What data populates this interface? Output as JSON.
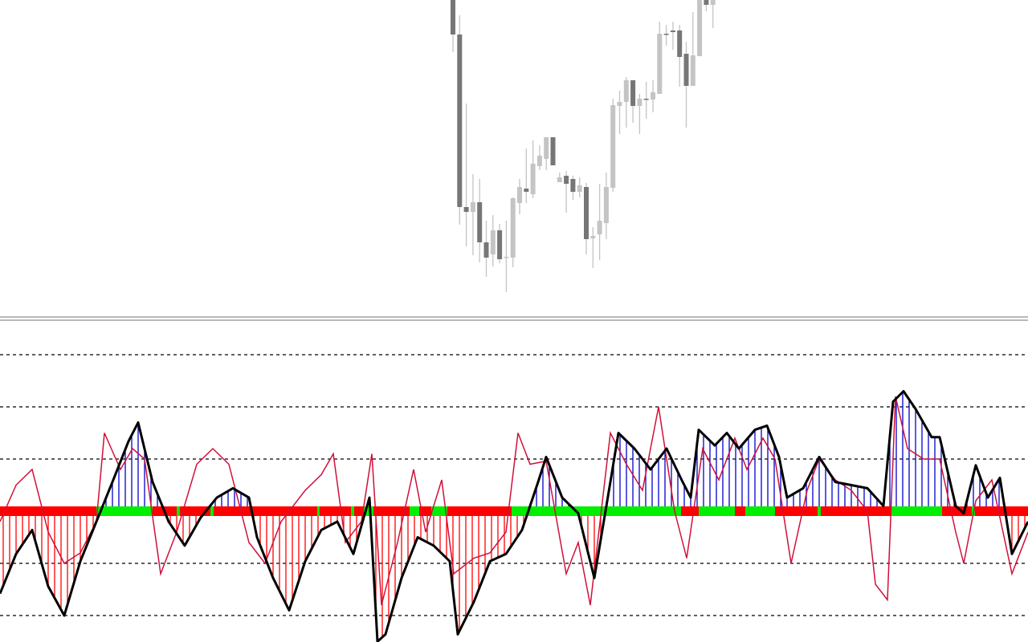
{
  "chart_data": [
    {
      "type": "candlestick",
      "panel": "price",
      "colors": {
        "bullish": "#c4c4c4",
        "bearish": "#767676"
      },
      "candles": [
        {
          "o": 400,
          "h": 400,
          "l": 335,
          "c": 357
        },
        {
          "o": 357,
          "h": 381,
          "l": 120,
          "c": 142
        },
        {
          "o": 142,
          "h": 271,
          "l": 93,
          "c": 136
        },
        {
          "o": 136,
          "h": 183,
          "l": 82,
          "c": 148
        },
        {
          "o": 148,
          "h": 177,
          "l": 73,
          "c": 98
        },
        {
          "o": 98,
          "h": 125,
          "l": 55,
          "c": 79
        },
        {
          "o": 83,
          "h": 132,
          "l": 68,
          "c": 113
        },
        {
          "o": 113,
          "h": 121,
          "l": 72,
          "c": 77
        },
        {
          "o": 80,
          "h": 125,
          "l": 36,
          "c": 80
        },
        {
          "o": 79,
          "h": 154,
          "l": 67,
          "c": 153
        },
        {
          "o": 147,
          "h": 177,
          "l": 133,
          "c": 167
        },
        {
          "o": 165,
          "h": 215,
          "l": 147,
          "c": 161
        },
        {
          "o": 158,
          "h": 225,
          "l": 153,
          "c": 196
        },
        {
          "o": 193,
          "h": 219,
          "l": 188,
          "c": 206
        },
        {
          "o": 202,
          "h": 229,
          "l": 188,
          "c": 229
        },
        {
          "o": 229,
          "h": 229,
          "l": 194,
          "c": 194
        },
        {
          "o": 173,
          "h": 185,
          "l": 173,
          "c": 179
        },
        {
          "o": 181,
          "h": 187,
          "l": 135,
          "c": 171
        },
        {
          "o": 177,
          "h": 181,
          "l": 151,
          "c": 161
        },
        {
          "o": 161,
          "h": 179,
          "l": 154,
          "c": 169
        },
        {
          "o": 167,
          "h": 172,
          "l": 83,
          "c": 102
        },
        {
          "o": 103,
          "h": 117,
          "l": 66,
          "c": 106
        },
        {
          "o": 108,
          "h": 171,
          "l": 76,
          "c": 125
        },
        {
          "o": 122,
          "h": 185,
          "l": 102,
          "c": 167
        },
        {
          "o": 166,
          "h": 277,
          "l": 161,
          "c": 269
        },
        {
          "o": 268,
          "h": 287,
          "l": 233,
          "c": 273
        },
        {
          "o": 273,
          "h": 304,
          "l": 241,
          "c": 300
        },
        {
          "o": 300,
          "h": 300,
          "l": 247,
          "c": 268
        },
        {
          "o": 268,
          "h": 283,
          "l": 233,
          "c": 277
        },
        {
          "o": 277,
          "h": 298,
          "l": 252,
          "c": 276
        },
        {
          "o": 276,
          "h": 300,
          "l": 260,
          "c": 285
        },
        {
          "o": 283,
          "h": 373,
          "l": 283,
          "c": 358
        },
        {
          "o": 358,
          "h": 369,
          "l": 343,
          "c": 357
        },
        {
          "o": 362,
          "h": 373,
          "l": 338,
          "c": 360
        },
        {
          "o": 362,
          "h": 369,
          "l": 292,
          "c": 329
        },
        {
          "o": 333,
          "h": 348,
          "l": 241,
          "c": 293
        },
        {
          "o": 293,
          "h": 385,
          "l": 293,
          "c": 331
        },
        {
          "o": 330,
          "h": 400,
          "l": 330,
          "c": 400
        },
        {
          "o": 400,
          "h": 400,
          "l": 386,
          "c": 394
        },
        {
          "o": 394,
          "h": 400,
          "l": 365,
          "c": 400
        }
      ]
    },
    {
      "type": "line",
      "panel": "oscillator",
      "levels": [
        150,
        100,
        50,
        -50,
        -100
      ],
      "ylim": [
        -125,
        190
      ],
      "colors": {
        "main": "#000000",
        "signal": "#d0103a",
        "hist_pos": "#0000cc",
        "hist_neg": "#ff0000",
        "state_up": "#00ee00",
        "state_down": "#ff0000",
        "level": "#000000"
      },
      "main": [
        [
          0,
          -79
        ],
        [
          20,
          -41
        ],
        [
          40,
          -18
        ],
        [
          60,
          -72
        ],
        [
          80,
          -100
        ],
        [
          100,
          -48
        ],
        [
          120,
          -10
        ],
        [
          140,
          28
        ],
        [
          160,
          67
        ],
        [
          172,
          85
        ],
        [
          190,
          28
        ],
        [
          210,
          -10
        ],
        [
          230,
          -33
        ],
        [
          250,
          -6
        ],
        [
          270,
          13
        ],
        [
          290,
          22
        ],
        [
          310,
          13
        ],
        [
          320,
          -25
        ],
        [
          340,
          -64
        ],
        [
          360,
          -95
        ],
        [
          380,
          -48
        ],
        [
          400,
          -18
        ],
        [
          420,
          -10
        ],
        [
          440,
          -41
        ],
        [
          460,
          13
        ],
        [
          470,
          -125
        ],
        [
          480,
          -118
        ],
        [
          500,
          -64
        ],
        [
          520,
          -25
        ],
        [
          540,
          -33
        ],
        [
          560,
          -48
        ],
        [
          570,
          -118
        ],
        [
          590,
          -87
        ],
        [
          610,
          -48
        ],
        [
          630,
          -41
        ],
        [
          650,
          -18
        ],
        [
          670,
          28
        ],
        [
          680,
          52
        ],
        [
          700,
          13
        ],
        [
          720,
          -2
        ],
        [
          740,
          -64
        ],
        [
          760,
          28
        ],
        [
          770,
          75
        ],
        [
          790,
          60
        ],
        [
          810,
          40
        ],
        [
          830,
          60
        ],
        [
          850,
          28
        ],
        [
          860,
          13
        ],
        [
          870,
          78
        ],
        [
          890,
          63
        ],
        [
          905,
          75
        ],
        [
          920,
          60
        ],
        [
          940,
          78
        ],
        [
          955,
          82
        ],
        [
          970,
          52
        ],
        [
          980,
          13
        ],
        [
          1000,
          22
        ],
        [
          1020,
          52
        ],
        [
          1040,
          28
        ],
        [
          1060,
          25
        ],
        [
          1080,
          22
        ],
        [
          1100,
          5
        ],
        [
          1112,
          105
        ],
        [
          1125,
          115
        ],
        [
          1140,
          98
        ],
        [
          1160,
          71
        ],
        [
          1170,
          71
        ],
        [
          1190,
          5
        ],
        [
          1200,
          -2
        ],
        [
          1215,
          44
        ],
        [
          1230,
          13
        ],
        [
          1245,
          32
        ],
        [
          1260,
          -41
        ],
        [
          1280,
          -10
        ]
      ],
      "signal": [
        [
          0,
          -10
        ],
        [
          20,
          25
        ],
        [
          40,
          40
        ],
        [
          60,
          -20
        ],
        [
          80,
          -50
        ],
        [
          100,
          -40
        ],
        [
          120,
          -10
        ],
        [
          130,
          75
        ],
        [
          150,
          40
        ],
        [
          165,
          60
        ],
        [
          180,
          50
        ],
        [
          200,
          -60
        ],
        [
          220,
          -20
        ],
        [
          245,
          45
        ],
        [
          265,
          60
        ],
        [
          285,
          45
        ],
        [
          310,
          -30
        ],
        [
          330,
          -50
        ],
        [
          350,
          -10
        ],
        [
          380,
          20
        ],
        [
          400,
          35
        ],
        [
          415,
          55
        ],
        [
          430,
          -30
        ],
        [
          450,
          -10
        ],
        [
          463,
          55
        ],
        [
          475,
          -90
        ],
        [
          495,
          -30
        ],
        [
          515,
          40
        ],
        [
          530,
          -20
        ],
        [
          550,
          30
        ],
        [
          565,
          -60
        ],
        [
          590,
          -45
        ],
        [
          610,
          -40
        ],
        [
          630,
          -20
        ],
        [
          645,
          75
        ],
        [
          660,
          45
        ],
        [
          680,
          48
        ],
        [
          705,
          -60
        ],
        [
          720,
          -30
        ],
        [
          735,
          -90
        ],
        [
          760,
          75
        ],
        [
          780,
          45
        ],
        [
          800,
          20
        ],
        [
          820,
          100
        ],
        [
          840,
          0
        ],
        [
          855,
          -45
        ],
        [
          875,
          60
        ],
        [
          895,
          30
        ],
        [
          915,
          70
        ],
        [
          930,
          40
        ],
        [
          950,
          70
        ],
        [
          965,
          50
        ],
        [
          985,
          -50
        ],
        [
          1005,
          20
        ],
        [
          1020,
          50
        ],
        [
          1040,
          30
        ],
        [
          1060,
          20
        ],
        [
          1080,
          0
        ],
        [
          1090,
          -70
        ],
        [
          1105,
          -85
        ],
        [
          1115,
          110
        ],
        [
          1130,
          60
        ],
        [
          1150,
          50
        ],
        [
          1170,
          50
        ],
        [
          1190,
          -20
        ],
        [
          1200,
          -50
        ],
        [
          1215,
          10
        ],
        [
          1235,
          30
        ],
        [
          1260,
          -60
        ],
        [
          1280,
          -20
        ]
      ],
      "state_up_ranges": [
        [
          120,
          190
        ],
        [
          220,
          224
        ],
        [
          262,
          266
        ],
        [
          395,
          398
        ],
        [
          437,
          441
        ],
        [
          453,
          465
        ],
        [
          510,
          522
        ],
        [
          537,
          557
        ],
        [
          637,
          848
        ],
        [
          870,
          915
        ],
        [
          928,
          965
        ],
        [
          1018,
          1022
        ],
        [
          1110,
          1173
        ],
        [
          1210,
          1214
        ]
      ]
    }
  ]
}
